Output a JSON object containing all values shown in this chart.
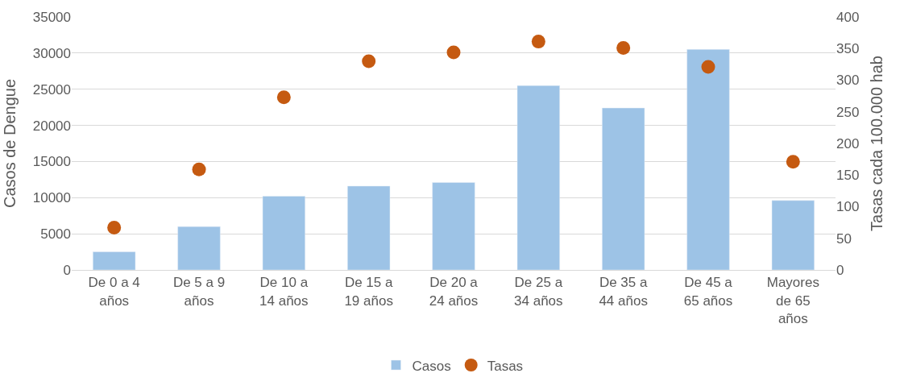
{
  "chart_data": {
    "type": "bar",
    "ylabel": "Casos de Dengue",
    "y2label": "Tasas cada 100.000 hab",
    "categories": [
      "De 0 a 4 años",
      "De 5 a 9 años",
      "De 10 a 14 años",
      "De 15 a 19 años",
      "De 20 a 24 años",
      "De 25 a 34 años",
      "De 35 a 44 años",
      "De 45 a 65 años",
      "Mayores de 65 años"
    ],
    "series": [
      {
        "name": "Casos",
        "color": "#9dc3e6",
        "values": [
          2500,
          6000,
          10200,
          11600,
          12100,
          25500,
          22400,
          30500,
          9600
        ]
      },
      {
        "name": "Tasas",
        "type": "scatter",
        "axis": "y2",
        "color": "#c55a11",
        "marker": "circle",
        "values": [
          67,
          159,
          273,
          330,
          344,
          361,
          351,
          321,
          171
        ]
      }
    ],
    "ylim": [
      0,
      35000
    ],
    "yticks": [
      0,
      5000,
      10000,
      15000,
      20000,
      25000,
      30000,
      35000
    ],
    "y2lim": [
      0,
      400
    ],
    "y2ticks": [
      0,
      50,
      100,
      150,
      200,
      250,
      300,
      350,
      400
    ],
    "grid": "y",
    "legend": "bottom"
  }
}
